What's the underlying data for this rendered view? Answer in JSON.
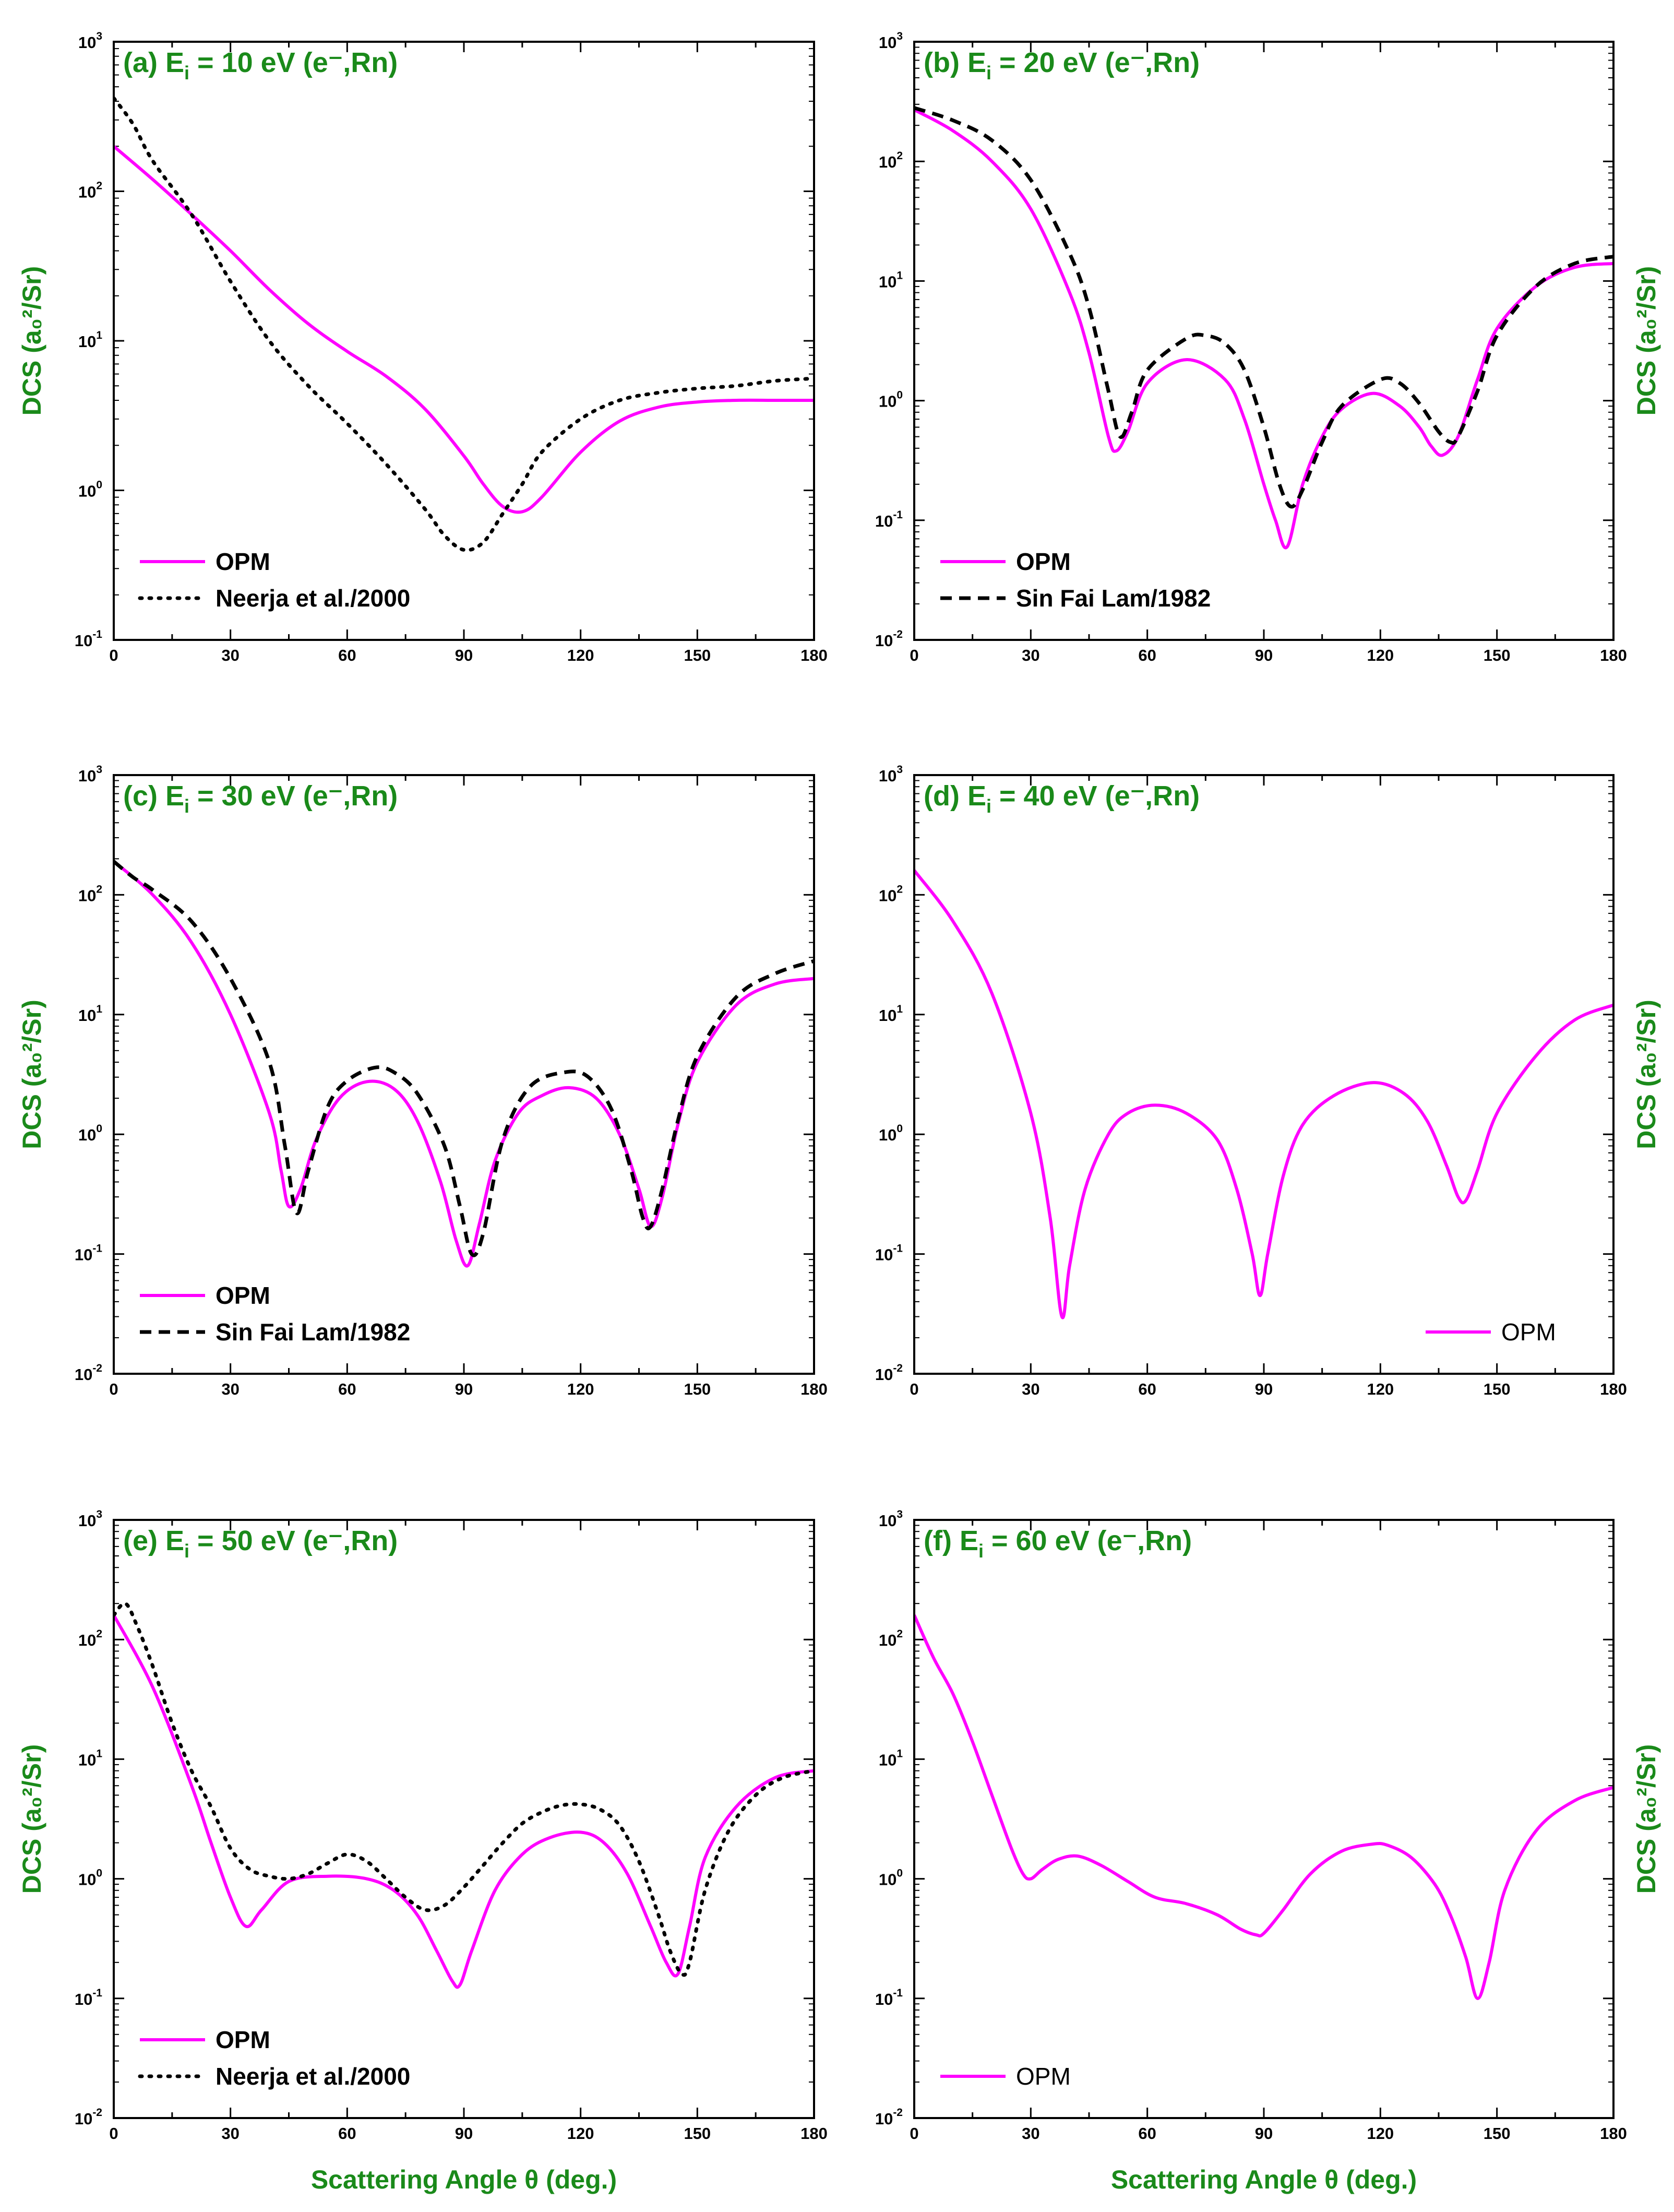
{
  "figure": {
    "xlabel": "Scattering Angle θ (deg.)",
    "ylabel": "DCS (a₀²/Sr)",
    "x_ticks": [
      "0",
      "30",
      "60",
      "90",
      "120",
      "150",
      "180"
    ]
  },
  "colors": {
    "opm": "#ff00ff",
    "reference": "#000000",
    "title": "#1a8a1a",
    "axes": "#000000"
  },
  "chart_data": [
    {
      "type": "line",
      "panel": "a",
      "title": "(a) E",
      "title_sub": "i",
      "title_rest": " = 10 eV (e⁻,Rn)",
      "ylabel_side": "left",
      "xlim": [
        0,
        180
      ],
      "ylim": [
        0.1,
        1000
      ],
      "y_ticks": [
        {
          "base": "10",
          "exp": "-1"
        },
        {
          "base": "10",
          "exp": "0"
        },
        {
          "base": "10",
          "exp": "1"
        },
        {
          "base": "10",
          "exp": "2"
        },
        {
          "base": "10",
          "exp": "3"
        }
      ],
      "legend_position": "bottom-left",
      "series": [
        {
          "name": "OPM",
          "style": "solid",
          "x": [
            0,
            10,
            20,
            30,
            40,
            50,
            60,
            70,
            80,
            90,
            95,
            100,
            105,
            110,
            120,
            130,
            140,
            150,
            160,
            170,
            180
          ],
          "y": [
            200,
            120,
            70,
            40,
            22,
            13,
            8.5,
            5.8,
            3.5,
            1.7,
            1.1,
            0.78,
            0.72,
            0.9,
            1.8,
            2.9,
            3.6,
            3.9,
            4,
            4,
            4
          ]
        },
        {
          "name": "Neerja et al./2000",
          "style": "dotted",
          "x": [
            0,
            5,
            10,
            20,
            30,
            40,
            50,
            60,
            70,
            80,
            85,
            90,
            95,
            100,
            105,
            110,
            120,
            130,
            140,
            150,
            160,
            170,
            180
          ],
          "y": [
            420,
            280,
            160,
            70,
            25,
            10,
            5,
            2.8,
            1.5,
            0.75,
            0.5,
            0.4,
            0.45,
            0.7,
            1.1,
            1.8,
            3.0,
            4.0,
            4.5,
            4.8,
            5.0,
            5.4,
            5.6
          ]
        }
      ]
    },
    {
      "type": "line",
      "panel": "b",
      "title": "(b) E",
      "title_sub": "i",
      "title_rest": " = 20 eV (e⁻,Rn)",
      "ylabel_side": "right",
      "xlim": [
        0,
        180
      ],
      "ylim": [
        0.01,
        1000
      ],
      "y_ticks": [
        {
          "base": "10",
          "exp": "-2"
        },
        {
          "base": "10",
          "exp": "-1"
        },
        {
          "base": "10",
          "exp": "0"
        },
        {
          "base": "10",
          "exp": "1"
        },
        {
          "base": "10",
          "exp": "2"
        },
        {
          "base": "10",
          "exp": "3"
        }
      ],
      "legend_position": "bottom-left",
      "series": [
        {
          "name": "OPM",
          "style": "solid",
          "x": [
            0,
            10,
            20,
            30,
            40,
            45,
            50,
            52,
            55,
            60,
            70,
            80,
            85,
            90,
            93,
            96,
            100,
            105,
            110,
            118,
            125,
            130,
            133,
            136,
            140,
            145,
            150,
            160,
            170,
            180
          ],
          "y": [
            270,
            180,
            100,
            40,
            8,
            2.5,
            0.5,
            0.38,
            0.55,
            1.4,
            2.2,
            1.5,
            0.7,
            0.2,
            0.1,
            0.06,
            0.2,
            0.5,
            0.85,
            1.15,
            0.9,
            0.6,
            0.42,
            0.35,
            0.5,
            1.5,
            4,
            9,
            13,
            14
          ]
        },
        {
          "name": "Sin Fai Lam/1982",
          "style": "dashed",
          "x": [
            0,
            10,
            20,
            30,
            40,
            45,
            50,
            53,
            56,
            60,
            70,
            75,
            80,
            85,
            90,
            94,
            97,
            100,
            105,
            110,
            120,
            125,
            130,
            135,
            138,
            140,
            145,
            150,
            160,
            170,
            180
          ],
          "y": [
            280,
            220,
            150,
            70,
            17,
            6,
            1.2,
            0.5,
            0.8,
            1.8,
            3.3,
            3.5,
            3.0,
            1.8,
            0.6,
            0.2,
            0.13,
            0.18,
            0.45,
            0.9,
            1.5,
            1.4,
            0.95,
            0.55,
            0.45,
            0.5,
            1.2,
            3.5,
            9,
            14,
            16
          ]
        }
      ]
    },
    {
      "type": "line",
      "panel": "c",
      "title": "(c) E",
      "title_sub": "i",
      "title_rest": " = 30 eV (e⁻,Rn)",
      "ylabel_side": "left",
      "xlim": [
        0,
        180
      ],
      "ylim": [
        0.01,
        1000
      ],
      "y_ticks": [
        {
          "base": "10",
          "exp": "-2"
        },
        {
          "base": "10",
          "exp": "-1"
        },
        {
          "base": "10",
          "exp": "0"
        },
        {
          "base": "10",
          "exp": "1"
        },
        {
          "base": "10",
          "exp": "2"
        },
        {
          "base": "10",
          "exp": "3"
        }
      ],
      "legend_position": "bottom-left",
      "series": [
        {
          "name": "OPM",
          "style": "solid",
          "x": [
            0,
            10,
            20,
            30,
            40,
            43,
            45,
            48,
            52,
            58,
            65,
            72,
            78,
            84,
            88,
            91,
            94,
            98,
            104,
            110,
            117,
            124,
            130,
            135,
            138,
            141,
            145,
            150,
            160,
            170,
            180
          ],
          "y": [
            190,
            100,
            40,
            10,
            1.5,
            0.5,
            0.25,
            0.35,
            0.9,
            2.0,
            2.75,
            2.4,
            1.3,
            0.4,
            0.13,
            0.08,
            0.18,
            0.6,
            1.5,
            2.1,
            2.45,
            2.0,
            1.0,
            0.35,
            0.17,
            0.3,
            1.2,
            4,
            12,
            18,
            20
          ]
        },
        {
          "name": "Sin Fai Lam/1982",
          "style": "dashed",
          "x": [
            0,
            5,
            10,
            20,
            30,
            40,
            44,
            47,
            50,
            55,
            60,
            67,
            72,
            78,
            85,
            89,
            92,
            95,
            100,
            107,
            116,
            122,
            128,
            133,
            136,
            138,
            141,
            145,
            150,
            160,
            170,
            180
          ],
          "y": [
            190,
            140,
            110,
            60,
            20,
            4,
            0.8,
            0.22,
            0.5,
            1.7,
            2.8,
            3.6,
            3.3,
            2.2,
            0.8,
            0.25,
            0.1,
            0.15,
            0.9,
            2.5,
            3.3,
            3.0,
            1.6,
            0.5,
            0.2,
            0.17,
            0.35,
            1.3,
            4.5,
            14,
            22,
            28
          ]
        }
      ]
    },
    {
      "type": "line",
      "panel": "d",
      "title": "(d) E",
      "title_sub": "i",
      "title_rest": " = 40 eV (e⁻,Rn)",
      "ylabel_side": "right",
      "xlim": [
        0,
        180
      ],
      "ylim": [
        0.01,
        1000
      ],
      "y_ticks": [
        {
          "base": "10",
          "exp": "-2"
        },
        {
          "base": "10",
          "exp": "-1"
        },
        {
          "base": "10",
          "exp": "0"
        },
        {
          "base": "10",
          "exp": "1"
        },
        {
          "base": "10",
          "exp": "2"
        },
        {
          "base": "10",
          "exp": "3"
        }
      ],
      "legend_position": "bottom-right",
      "series": [
        {
          "name": "OPM",
          "style": "solid",
          "x": [
            0,
            10,
            20,
            30,
            35,
            38,
            40,
            44,
            50,
            55,
            62,
            70,
            78,
            83,
            87,
            89,
            91,
            95,
            100,
            108,
            118,
            126,
            132,
            137,
            140,
            142,
            145,
            150,
            160,
            170,
            180
          ],
          "y": [
            160,
            60,
            15,
            1.5,
            0.2,
            0.03,
            0.08,
            0.35,
            1.0,
            1.5,
            1.75,
            1.5,
            0.9,
            0.35,
            0.1,
            0.045,
            0.1,
            0.45,
            1.2,
            2.1,
            2.7,
            2.2,
            1.3,
            0.55,
            0.3,
            0.28,
            0.5,
            1.5,
            4.5,
            9,
            12
          ]
        }
      ]
    },
    {
      "type": "line",
      "panel": "e",
      "title": "(e) E",
      "title_sub": "i",
      "title_rest": " = 50 eV (e⁻,Rn)",
      "ylabel_side": "left",
      "xlim": [
        0,
        180
      ],
      "ylim": [
        0.01,
        1000
      ],
      "y_ticks": [
        {
          "base": "10",
          "exp": "-2"
        },
        {
          "base": "10",
          "exp": "-1"
        },
        {
          "base": "10",
          "exp": "0"
        },
        {
          "base": "10",
          "exp": "1"
        },
        {
          "base": "10",
          "exp": "2"
        },
        {
          "base": "10",
          "exp": "3"
        }
      ],
      "legend_position": "bottom-left",
      "series": [
        {
          "name": "OPM",
          "style": "solid",
          "x": [
            0,
            10,
            20,
            25,
            30,
            34,
            38,
            45,
            55,
            65,
            72,
            78,
            83,
            87,
            89,
            92,
            98,
            105,
            112,
            120,
            126,
            132,
            138,
            142,
            145,
            148,
            152,
            160,
            170,
            180
          ],
          "y": [
            160,
            40,
            6,
            2,
            0.7,
            0.4,
            0.55,
            0.95,
            1.05,
            1.0,
            0.8,
            0.5,
            0.25,
            0.14,
            0.13,
            0.25,
            0.8,
            1.6,
            2.2,
            2.45,
            2.0,
            1.1,
            0.4,
            0.2,
            0.16,
            0.4,
            1.5,
            4,
            7,
            8
          ]
        },
        {
          "name": "Neerja et al./2000",
          "style": "dotted",
          "x": [
            0,
            3,
            6,
            10,
            15,
            20,
            25,
            30,
            35,
            40,
            45,
            50,
            55,
            60,
            65,
            70,
            75,
            80,
            85,
            90,
            95,
            100,
            105,
            110,
            115,
            120,
            125,
            130,
            135,
            140,
            143,
            146,
            148,
            152,
            158,
            165,
            172,
            180
          ],
          "y": [
            160,
            200,
            130,
            60,
            20,
            8,
            4,
            1.8,
            1.2,
            1.05,
            1.0,
            1.1,
            1.35,
            1.6,
            1.4,
            1.0,
            0.7,
            0.55,
            0.6,
            0.85,
            1.3,
            2.0,
            2.9,
            3.6,
            4.1,
            4.2,
            3.8,
            2.8,
            1.4,
            0.5,
            0.25,
            0.16,
            0.2,
            0.8,
            2.5,
            5,
            7,
            8
          ]
        }
      ]
    },
    {
      "type": "line",
      "panel": "f",
      "title": "(f) E",
      "title_sub": "i",
      "title_rest": " = 60 eV (e⁻,Rn)",
      "ylabel_side": "right",
      "xlim": [
        0,
        180
      ],
      "ylim": [
        0.01,
        1000
      ],
      "y_ticks": [
        {
          "base": "10",
          "exp": "-2"
        },
        {
          "base": "10",
          "exp": "-1"
        },
        {
          "base": "10",
          "exp": "0"
        },
        {
          "base": "10",
          "exp": "1"
        },
        {
          "base": "10",
          "exp": "2"
        },
        {
          "base": "10",
          "exp": "3"
        }
      ],
      "legend_position": "bottom-left",
      "series": [
        {
          "name": "OPM",
          "style": "solid",
          "x": [
            0,
            5,
            10,
            15,
            20,
            25,
            28,
            30,
            33,
            37,
            42,
            48,
            55,
            62,
            70,
            78,
            84,
            88,
            90,
            95,
            102,
            110,
            118,
            122,
            128,
            134,
            138,
            142,
            145,
            148,
            152,
            160,
            170,
            180
          ],
          "y": [
            160,
            70,
            35,
            14,
            5,
            1.8,
            1.1,
            1.0,
            1.2,
            1.45,
            1.55,
            1.3,
            0.95,
            0.7,
            0.62,
            0.5,
            0.38,
            0.34,
            0.35,
            0.55,
            1.1,
            1.7,
            1.95,
            1.9,
            1.5,
            0.9,
            0.5,
            0.22,
            0.1,
            0.2,
            0.8,
            2.5,
            4.5,
            5.8
          ]
        }
      ]
    }
  ]
}
